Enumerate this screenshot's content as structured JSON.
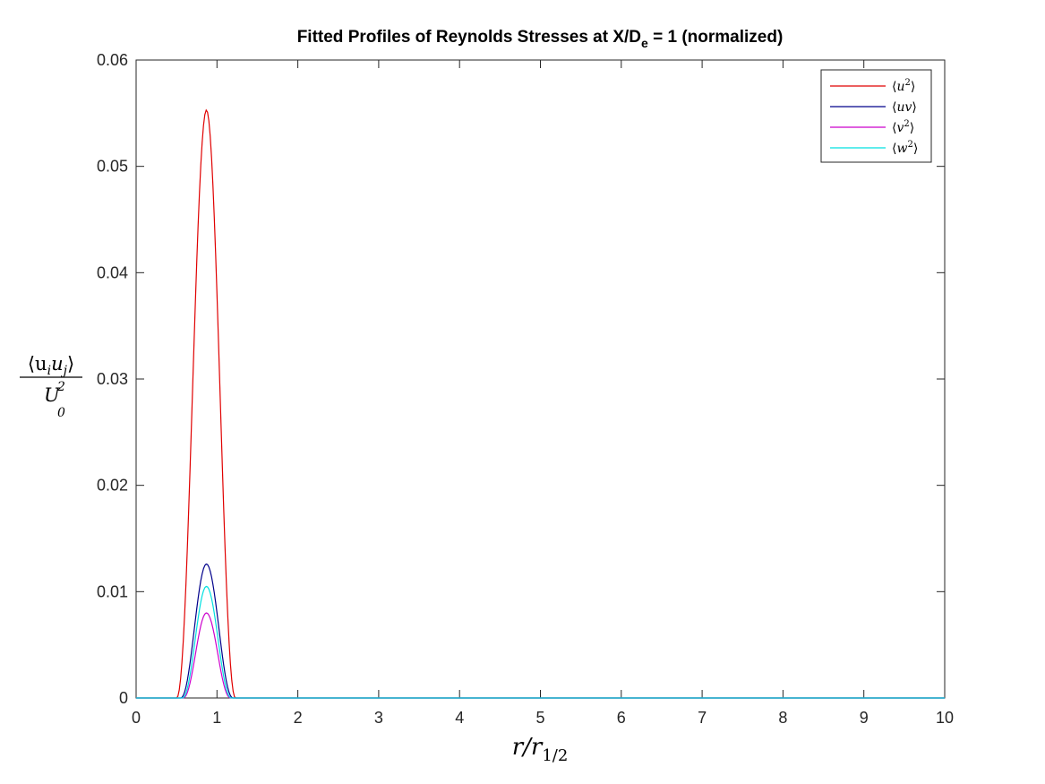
{
  "chart_data": {
    "type": "line",
    "title": {
      "prefix": "Fitted Profiles of Reynolds Stresses at X/D",
      "subscript": "e",
      "suffix": " = 1 (normalized)"
    },
    "xlabel": {
      "main": "r/r",
      "subscript": "1/2"
    },
    "ylabel": {
      "numerator": "⟨u",
      "numerator_sub1": "i",
      "numerator_mid": "u",
      "numerator_sub2": "j",
      "numerator_close": "⟩",
      "denominator": "U",
      "denominator_sup": "2",
      "denominator_sub": "0"
    },
    "xlim": [
      0,
      10
    ],
    "ylim": [
      0,
      0.06
    ],
    "xticks": [
      "0",
      "1",
      "2",
      "3",
      "4",
      "5",
      "6",
      "7",
      "8",
      "9",
      "10"
    ],
    "yticks": [
      "0",
      "0.01",
      "0.02",
      "0.03",
      "0.04",
      "0.05",
      "0.06"
    ],
    "grid": false,
    "legend_position": "top-right",
    "series": [
      {
        "name": "⟨u²⟩",
        "legend_base": "u",
        "legend_sup": "2",
        "color": "#e00000",
        "peak_x": 0.87,
        "peak_y": 0.0553,
        "x_start": 0.5,
        "x_end": 1.23
      },
      {
        "name": "⟨uv⟩",
        "legend_base": "uv",
        "legend_sup": "",
        "color": "#00008b",
        "peak_x": 0.87,
        "peak_y": 0.0126,
        "x_start": 0.55,
        "x_end": 1.2
      },
      {
        "name": "⟨v²⟩",
        "legend_base": "v",
        "legend_sup": "2",
        "color": "#cc00cc",
        "peak_x": 0.87,
        "peak_y": 0.008,
        "x_start": 0.58,
        "x_end": 1.17
      },
      {
        "name": "⟨w²⟩",
        "legend_base": "w",
        "legend_sup": "2",
        "color": "#00e0e0",
        "peak_x": 0.87,
        "peak_y": 0.0105,
        "x_start": 0.57,
        "x_end": 1.18
      }
    ]
  }
}
